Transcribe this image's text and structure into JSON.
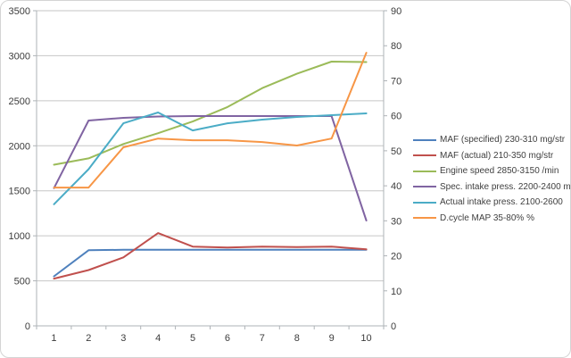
{
  "chart_data": {
    "type": "line",
    "title": "",
    "x": [
      1,
      2,
      3,
      4,
      5,
      6,
      7,
      8,
      9,
      10
    ],
    "x_axis": {
      "labels": [
        "1",
        "2",
        "3",
        "4",
        "5",
        "6",
        "7",
        "8",
        "9",
        "10"
      ]
    },
    "left_axis": {
      "min": 0,
      "max": 3500,
      "step": 500,
      "tick_labels": [
        "0",
        "500",
        "1000",
        "1500",
        "2000",
        "2500",
        "3000",
        "3500"
      ]
    },
    "right_axis": {
      "min": 0,
      "max": 90,
      "step": 10,
      "tick_labels": [
        "0",
        "10",
        "20",
        "30",
        "40",
        "50",
        "60",
        "70",
        "80",
        "90"
      ]
    },
    "grid": true,
    "legend_position": "right",
    "series": [
      {
        "name": "MAF (specified) 230-310  mg/str",
        "color": "#4F81BD",
        "axis": "left",
        "values": [
          550,
          840,
          845,
          845,
          845,
          845,
          845,
          845,
          845,
          845
        ]
      },
      {
        "name": "MAF (actual) 210-350  mg/str",
        "color": "#C0504D",
        "axis": "left",
        "values": [
          525,
          620,
          760,
          1030,
          880,
          870,
          880,
          875,
          880,
          850
        ]
      },
      {
        "name": "Engine speed 2850-3150  /min",
        "color": "#9BBB59",
        "axis": "left",
        "values": [
          1790,
          1860,
          2020,
          2140,
          2270,
          2430,
          2640,
          2800,
          2935,
          2930
        ]
      },
      {
        "name": "Spec. intake press. 2200-2400  mbar",
        "color": "#8064A2",
        "axis": "left",
        "values": [
          1530,
          2280,
          2310,
          2325,
          2330,
          2330,
          2330,
          2330,
          2330,
          1170
        ]
      },
      {
        "name": "Actual intake press. 2100-2600",
        "color": "#4BACC6",
        "axis": "left",
        "values": [
          1350,
          1740,
          2250,
          2370,
          2170,
          2250,
          2290,
          2320,
          2340,
          2360
        ]
      },
      {
        "name": "D.cycle MAP 35-80% %",
        "color": "#F79646",
        "axis": "right",
        "values": [
          39.5,
          39.5,
          51,
          53.5,
          53,
          53,
          52.5,
          51.5,
          53.5,
          78
        ]
      }
    ],
    "colors": {
      "gridline": "#c6c6c6",
      "axis_line": "#aeb3b7",
      "tick_text": "#3c3c3c",
      "background": "#ffffff",
      "frame_border": "#d4d4d4"
    }
  }
}
